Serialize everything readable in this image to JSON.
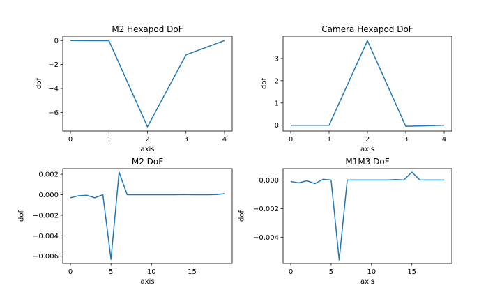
{
  "chart_data": [
    {
      "type": "line",
      "title": "M2 Hexapod DoF",
      "xlabel": "axis",
      "ylabel": "dof",
      "xlim": [
        -0.2,
        4.2
      ],
      "ylim": [
        -7.55,
        0.36
      ],
      "xticks": [
        0,
        1,
        2,
        3,
        4
      ],
      "xtick_labels": [
        "0",
        "1",
        "2",
        "3",
        "4"
      ],
      "yticks": [
        0,
        -2,
        -4,
        -6
      ],
      "ytick_labels": [
        "0",
        "−2",
        "−4",
        "−6"
      ],
      "color": "#1f77b4",
      "series": [
        {
          "x": [
            0,
            1,
            2,
            3,
            4
          ],
          "values": [
            0.0,
            -0.02,
            -7.2,
            -1.2,
            0.0
          ]
        }
      ]
    },
    {
      "type": "line",
      "title": "Camera Hexapod DoF",
      "xlabel": "axis",
      "ylabel": "dof",
      "xlim": [
        -0.2,
        4.2
      ],
      "ylim": [
        -0.26,
        4.0
      ],
      "xticks": [
        0,
        1,
        2,
        3,
        4
      ],
      "xtick_labels": [
        "0",
        "1",
        "2",
        "3",
        "4"
      ],
      "yticks": [
        0,
        1,
        2,
        3
      ],
      "ytick_labels": [
        "0",
        "1",
        "2",
        "3"
      ],
      "color": "#1f77b4",
      "series": [
        {
          "x": [
            0,
            1,
            2,
            3,
            4
          ],
          "values": [
            0.0,
            0.0,
            3.8,
            -0.05,
            0.0
          ]
        }
      ]
    },
    {
      "type": "line",
      "title": "M2 DoF",
      "xlabel": "axis",
      "ylabel": "dof",
      "xlim": [
        -0.95,
        19.95
      ],
      "ylim": [
        -0.0067,
        0.00255
      ],
      "xticks": [
        0,
        5,
        10,
        15
      ],
      "xtick_labels": [
        "0",
        "5",
        "10",
        "15"
      ],
      "yticks": [
        0.002,
        0.0,
        -0.002,
        -0.004,
        -0.006
      ],
      "ytick_labels": [
        "0.002",
        "0.000",
        "−0.002",
        "−0.004",
        "−0.006"
      ],
      "color": "#1f77b4",
      "series": [
        {
          "x": [
            0,
            1,
            2,
            3,
            4,
            5,
            6,
            7,
            8,
            9,
            10,
            11,
            12,
            13,
            14,
            15,
            16,
            17,
            18,
            19
          ],
          "values": [
            -0.0003,
            -0.0001,
            -5e-05,
            -0.0003,
            0.0,
            -0.0063,
            0.0022,
            0.0,
            0.0,
            0.0,
            0.0,
            0.0,
            0.0,
            0.0,
            2e-05,
            0.0,
            0.0,
            0.0,
            2e-05,
            0.0001
          ]
        }
      ]
    },
    {
      "type": "line",
      "title": "M1M3 DoF",
      "xlabel": "axis",
      "ylabel": "dof",
      "xlim": [
        -0.95,
        19.95
      ],
      "ylim": [
        -0.00584,
        0.0008
      ],
      "xticks": [
        0,
        5,
        10,
        15
      ],
      "xtick_labels": [
        "0",
        "5",
        "10",
        "15"
      ],
      "yticks": [
        0.0,
        -0.002,
        -0.004
      ],
      "ytick_labels": [
        "0.000",
        "−0.002",
        "−0.004"
      ],
      "color": "#1f77b4",
      "series": [
        {
          "x": [
            0,
            1,
            2,
            3,
            4,
            5,
            6,
            7,
            8,
            9,
            10,
            11,
            12,
            13,
            14,
            15,
            16,
            17,
            18,
            19
          ],
          "values": [
            -0.0001,
            -0.0002,
            -5e-05,
            -0.00025,
            5e-05,
            0.0,
            -0.0056,
            0.0,
            0.0,
            0.0,
            0.0,
            0.0,
            0.0,
            3e-05,
            0.0,
            0.00055,
            0.0,
            0.0,
            0.0,
            0.0
          ]
        }
      ]
    }
  ]
}
